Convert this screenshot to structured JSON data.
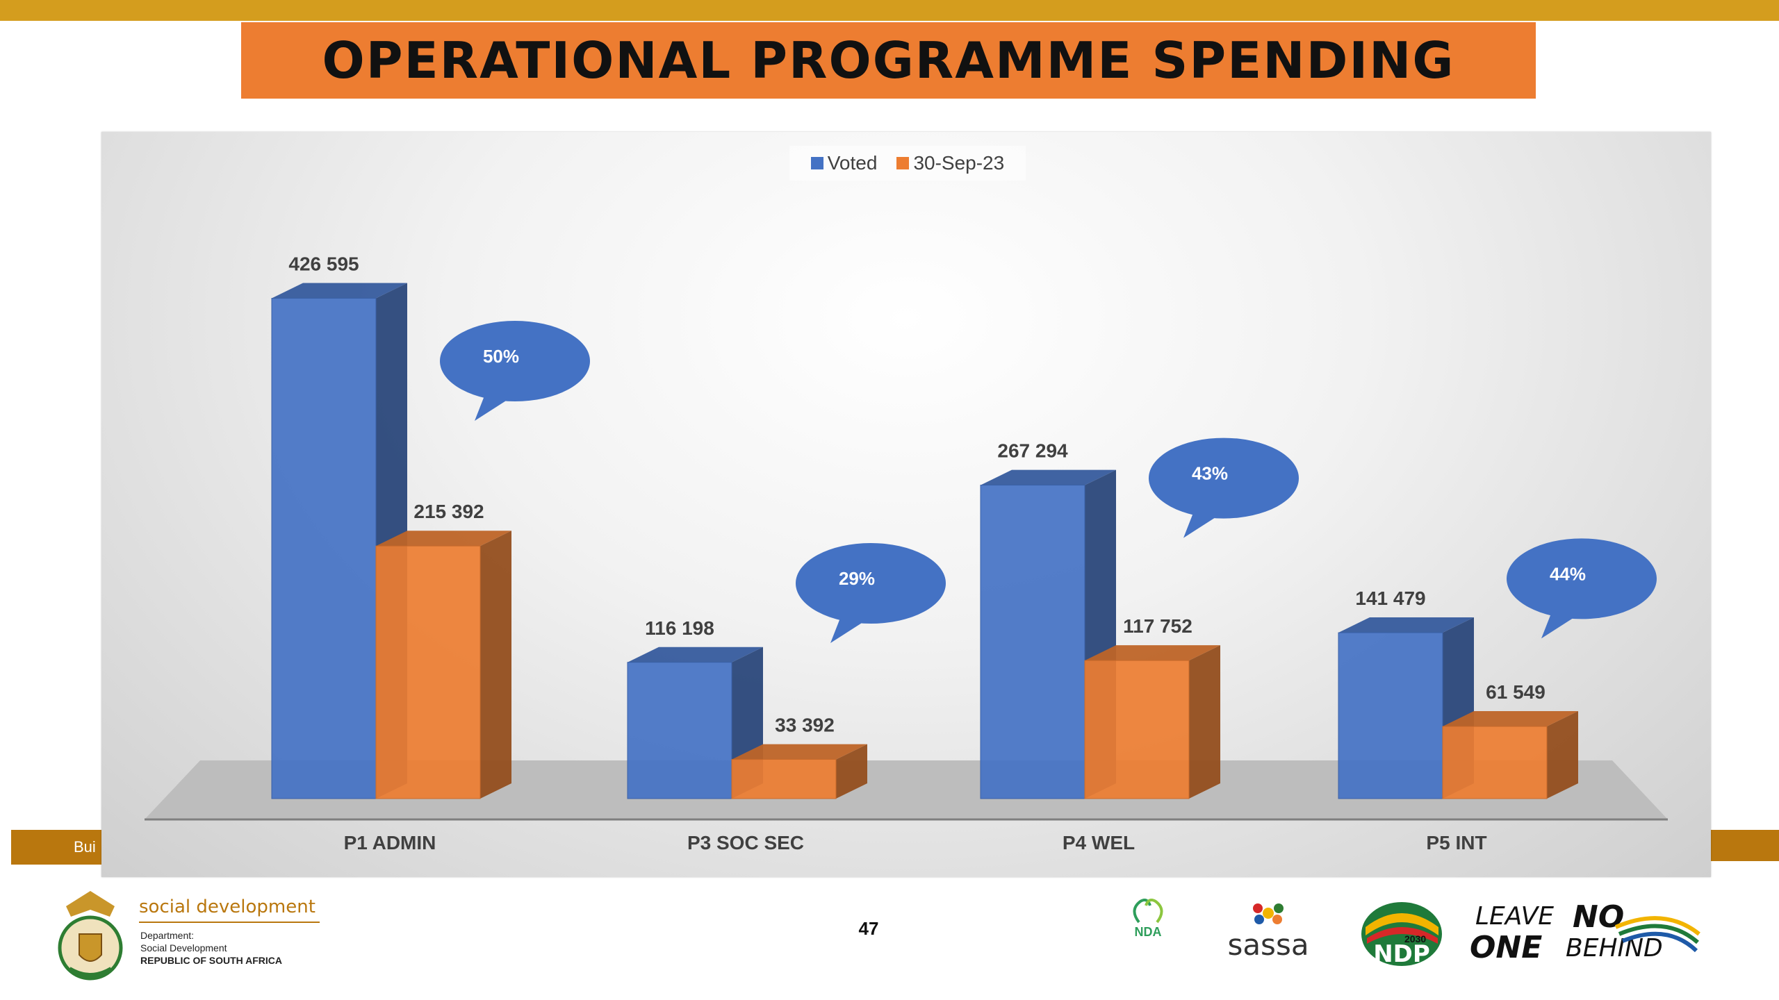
{
  "slide": {
    "title": "OPERATIONAL PROGRAMME SPENDING",
    "page_number": "47",
    "side_band_text": "Bui"
  },
  "footer": {
    "department_title": "social development",
    "department_lines": [
      "Department:",
      "Social Development",
      "REPUBLIC OF SOUTH AFRICA"
    ],
    "logos": {
      "nda": "NDA",
      "sassa": "sassa",
      "ndp": "NDP",
      "ndp_year": "2030",
      "lnob_1a": "LEAVE",
      "lnob_1b": "NO",
      "lnob_2a": "ONE",
      "lnob_2b": "BEHIND"
    }
  },
  "colors": {
    "accent_stripe": "#d49d1e",
    "title_bg": "#ed7d31",
    "voted": "#4472c4",
    "spent": "#ed7d31",
    "callout": "#4472c4"
  },
  "chart_data": {
    "type": "bar",
    "variant": "3d-clustered-column",
    "categories": [
      "P1 ADMIN",
      "P3 SOC SEC",
      "P4 WEL",
      "P5 INT"
    ],
    "series": [
      {
        "name": "Voted",
        "values": [
          426595,
          116198,
          267294,
          141479
        ],
        "labels": [
          "426 595",
          "116 198",
          "267 294",
          "141 479"
        ]
      },
      {
        "name": "30-Sep-23",
        "values": [
          215392,
          33392,
          117752,
          61549
        ],
        "labels": [
          "215 392",
          "33 392",
          "117 752",
          "61 549"
        ]
      }
    ],
    "callouts": [
      "50%",
      "29%",
      "43%",
      "44%"
    ],
    "legend_position": "top-center",
    "ylim": [
      0,
      450000
    ],
    "grid": false
  }
}
